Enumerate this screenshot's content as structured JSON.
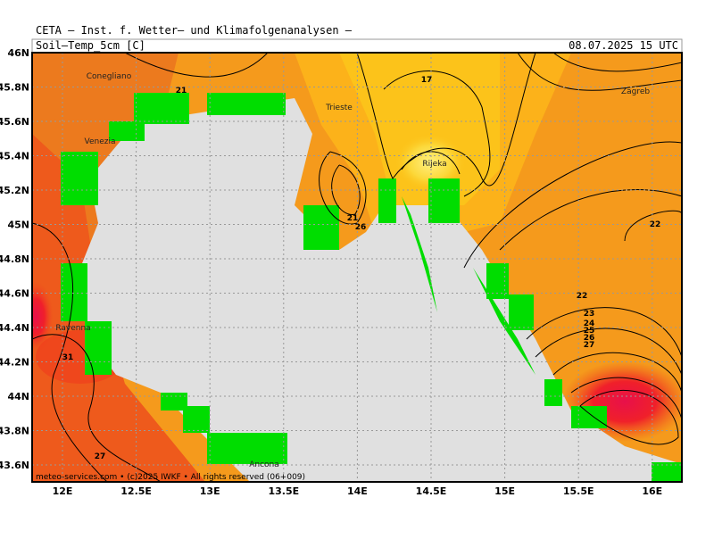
{
  "header": {
    "title": "CETA — Inst. f. Wetter— und Klimafolgenanalysen —",
    "parameter": "Soil—Temp_5cm [C]",
    "valid_time": "08.07.2025 15 UTC"
  },
  "axes": {
    "lon_ticks": [
      "12E",
      "12.5E",
      "13E",
      "13.5E",
      "14E",
      "14.5E",
      "15E",
      "15.5E",
      "16E"
    ],
    "lat_ticks": [
      "46N",
      "45.8N",
      "45.6N",
      "45.4N",
      "45.2N",
      "45N",
      "44.8N",
      "44.6N",
      "44.4N",
      "44.2N",
      "44N",
      "43.8N",
      "43.6N"
    ]
  },
  "places": [
    "Conegliano",
    "Venezia",
    "Trieste",
    "Rijeka",
    "Zagreb",
    "Ravenna",
    "Ancona"
  ],
  "contour_labels": [
    "21",
    "17",
    "21",
    "26",
    "22",
    "22",
    "23",
    "24",
    "25",
    "26",
    "27",
    "31",
    "27"
  ],
  "footer": "meteo-services.com • (c)2025 IWKF • All rights reserved (06+009)"
}
